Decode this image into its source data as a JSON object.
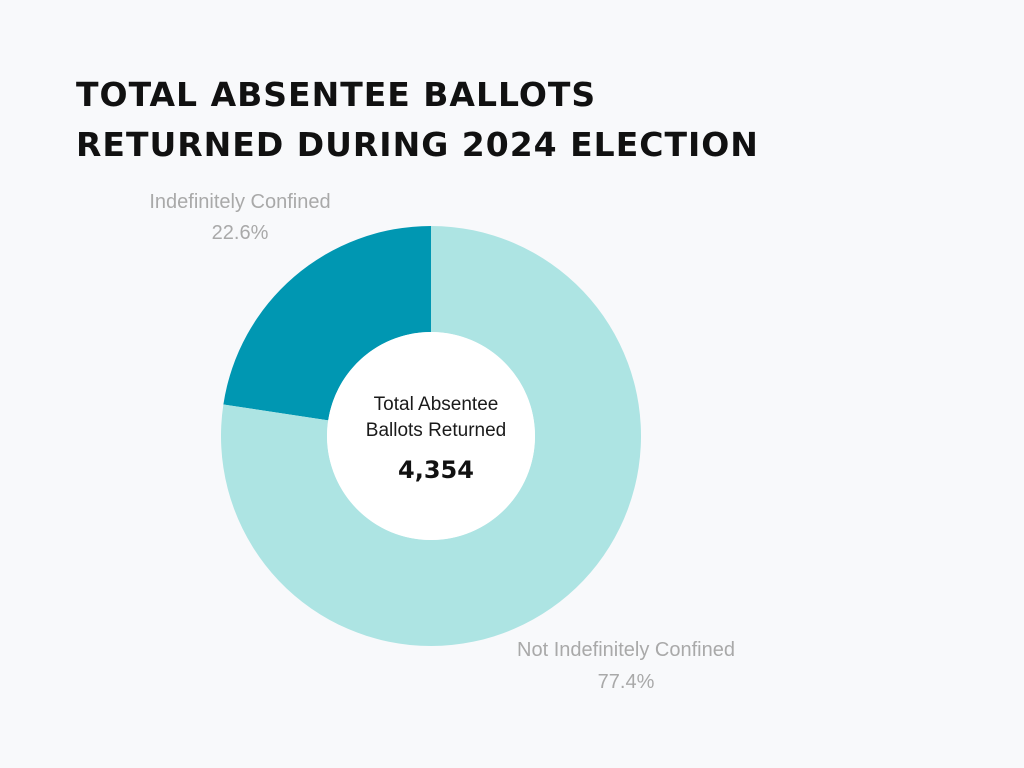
{
  "title": {
    "line1": "TOTAL ABSENTEE BALLOTS",
    "line2": "RETURNED DURING 2024 ELECTION"
  },
  "center": {
    "label_line1": "Total Absentee",
    "label_line2": "Ballots Returned",
    "value": "4,354"
  },
  "chart_data": {
    "type": "pie",
    "variant": "donut",
    "categories": [
      "Indefinitely Confined",
      "Not Indefinitely Confined"
    ],
    "values": [
      22.6,
      77.4
    ],
    "value_labels": [
      "22.6%",
      "77.4%"
    ],
    "colors": [
      "#0097b2",
      "#ade4e3"
    ],
    "total": 4354
  }
}
